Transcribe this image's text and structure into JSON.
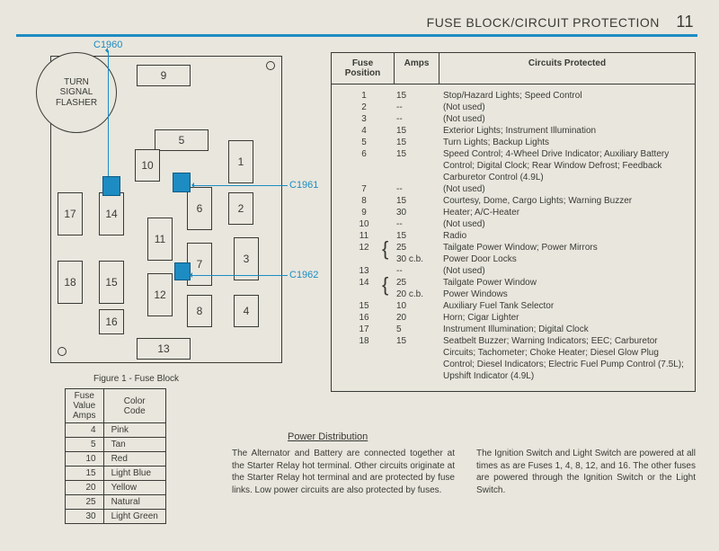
{
  "page": {
    "title": "FUSE BLOCK/CIRCUIT PROTECTION",
    "number": "11"
  },
  "flasher_label": "TURN\nSIGNAL\nFLASHER",
  "figure_caption": "Figure 1 - Fuse Block",
  "slots": [
    "1",
    "2",
    "3",
    "4",
    "5",
    "6",
    "7",
    "8",
    "9",
    "10",
    "11",
    "12",
    "13",
    "14",
    "15",
    "16",
    "17",
    "18"
  ],
  "callouts": {
    "c1960": "C1960",
    "c1961": "C1961",
    "c1962": "C1962"
  },
  "color_code": {
    "headers": [
      "Fuse\nValue\nAmps",
      "Color\nCode"
    ],
    "rows": [
      [
        "4",
        "Pink"
      ],
      [
        "5",
        "Tan"
      ],
      [
        "10",
        "Red"
      ],
      [
        "15",
        "Light Blue"
      ],
      [
        "20",
        "Yellow"
      ],
      [
        "25",
        "Natural"
      ],
      [
        "30",
        "Light Green"
      ]
    ]
  },
  "circuits": {
    "headers": [
      "Fuse\nPosition",
      "Amps",
      "Circuits Protected"
    ],
    "rows": [
      {
        "pos": "1",
        "amps": "15",
        "desc": "Stop/Hazard Lights; Speed Control"
      },
      {
        "pos": "2",
        "amps": "--",
        "desc": "(Not used)"
      },
      {
        "pos": "3",
        "amps": "--",
        "desc": "(Not used)"
      },
      {
        "pos": "4",
        "amps": "15",
        "desc": "Exterior Lights; Instrument Illumination"
      },
      {
        "pos": "5",
        "amps": "15",
        "desc": "Turn Lights; Backup Lights"
      },
      {
        "pos": "6",
        "amps": "15",
        "desc": "Speed Control; 4-Wheel Drive Indicator; Auxiliary Battery Control; Digital Clock; Rear Window Defrost; Feedback Carburetor Control (4.9L)"
      },
      {
        "pos": "7",
        "amps": "--",
        "desc": "(Not used)"
      },
      {
        "pos": "8",
        "amps": "15",
        "desc": "Courtesy, Dome, Cargo Lights; Warning Buzzer"
      },
      {
        "pos": "9",
        "amps": "30",
        "desc": "Heater; A/C-Heater"
      },
      {
        "pos": "10",
        "amps": "--",
        "desc": "(Not used)"
      },
      {
        "pos": "11",
        "amps": "15",
        "desc": "Radio"
      },
      {
        "pos": "12",
        "amps": "25",
        "desc": "Tailgate Power Window; Power Mirrors"
      },
      {
        "pos": "",
        "amps": "30 c.b.",
        "desc": "Power Door Locks"
      },
      {
        "pos": "13",
        "amps": "--",
        "desc": "(Not used)"
      },
      {
        "pos": "14",
        "amps": "25",
        "desc": "Tailgate Power Window"
      },
      {
        "pos": "",
        "amps": "20 c.b.",
        "desc": "Power Windows"
      },
      {
        "pos": "15",
        "amps": "10",
        "desc": "Auxiliary Fuel Tank Selector"
      },
      {
        "pos": "16",
        "amps": "20",
        "desc": "Horn; Cigar Lighter"
      },
      {
        "pos": "17",
        "amps": "5",
        "desc": "Instrument Illumination; Digital Clock"
      },
      {
        "pos": "18",
        "amps": "15",
        "desc": "Seatbelt Buzzer; Warning Indicators; EEC; Carburetor Circuits; Tachometer; Choke Heater; Diesel Glow Plug Control; Diesel Indicators; Electric Fuel Pump Control (7.5L); Upshift Indicator (4.9L)"
      }
    ]
  },
  "footer": {
    "heading": "Power Distribution",
    "col1": "The Alternator and Battery are connected together at the Starter Relay hot terminal. Other circuits originate at the Starter Relay hot terminal and are protected by fuse links. Low power circuits are also protected by fuses.",
    "col2": "The Ignition Switch and Light Switch are powered at all times as are Fuses 1, 4, 8, 12, and 16. The other fuses are powered through the Ignition Switch or the Light Switch."
  },
  "colors": {
    "accent": "#1c8cc3",
    "ink": "#3a3a35",
    "paper": "#e8e6dd"
  }
}
